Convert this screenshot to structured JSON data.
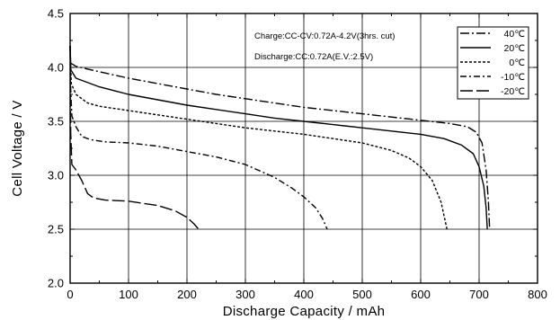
{
  "chart_data": {
    "type": "line",
    "xlabel": "Discharge  Capacity  /  mAh",
    "ylabel": "Cell  Voltage  /  V",
    "xlim": [
      0,
      800
    ],
    "ylim": [
      2.0,
      4.5
    ],
    "x_ticks": [
      0,
      100,
      200,
      300,
      400,
      500,
      600,
      700,
      800
    ],
    "y_ticks": [
      2.0,
      2.5,
      3.0,
      3.5,
      4.0,
      4.5
    ],
    "x_tick_labels": [
      "0",
      "100",
      "200",
      "300",
      "400",
      "500",
      "600",
      "700",
      "800"
    ],
    "y_tick_labels": [
      "2.0",
      "2.5",
      "3.0",
      "3.5",
      "4.0",
      "4.5"
    ],
    "grid": true,
    "legend_position": "top-right",
    "annotations": [
      "Charge:CC-CV:0.72A-4.2V(3hrs.  cut)",
      "Discharge:CC:0.72A(E.V.:2.5V)"
    ],
    "series": [
      {
        "name": "40℃",
        "dash": "10,3,2,3",
        "points": [
          [
            0,
            4.2
          ],
          [
            1,
            4.04
          ],
          [
            10,
            4.01
          ],
          [
            50,
            3.96
          ],
          [
            100,
            3.9
          ],
          [
            150,
            3.85
          ],
          [
            200,
            3.8
          ],
          [
            250,
            3.75
          ],
          [
            300,
            3.71
          ],
          [
            350,
            3.67
          ],
          [
            400,
            3.63
          ],
          [
            450,
            3.6
          ],
          [
            500,
            3.57
          ],
          [
            550,
            3.54
          ],
          [
            600,
            3.51
          ],
          [
            650,
            3.48
          ],
          [
            680,
            3.45
          ],
          [
            695,
            3.4
          ],
          [
            705,
            3.3
          ],
          [
            712,
            3.05
          ],
          [
            716,
            2.75
          ],
          [
            718,
            2.5
          ]
        ]
      },
      {
        "name": "20℃",
        "dash": "",
        "points": [
          [
            0,
            4.2
          ],
          [
            1,
            3.98
          ],
          [
            10,
            3.9
          ],
          [
            50,
            3.82
          ],
          [
            100,
            3.75
          ],
          [
            150,
            3.7
          ],
          [
            200,
            3.65
          ],
          [
            250,
            3.61
          ],
          [
            300,
            3.57
          ],
          [
            350,
            3.53
          ],
          [
            400,
            3.5
          ],
          [
            450,
            3.47
          ],
          [
            500,
            3.44
          ],
          [
            550,
            3.41
          ],
          [
            600,
            3.38
          ],
          [
            640,
            3.34
          ],
          [
            670,
            3.28
          ],
          [
            690,
            3.2
          ],
          [
            700,
            3.08
          ],
          [
            708,
            2.9
          ],
          [
            712,
            2.7
          ],
          [
            714,
            2.5
          ]
        ]
      },
      {
        "name": "0℃",
        "dash": "3,2",
        "points": [
          [
            0,
            4.2
          ],
          [
            2,
            3.85
          ],
          [
            10,
            3.75
          ],
          [
            30,
            3.67
          ],
          [
            50,
            3.64
          ],
          [
            100,
            3.6
          ],
          [
            150,
            3.56
          ],
          [
            200,
            3.52
          ],
          [
            250,
            3.48
          ],
          [
            300,
            3.44
          ],
          [
            350,
            3.41
          ],
          [
            400,
            3.38
          ],
          [
            450,
            3.34
          ],
          [
            500,
            3.3
          ],
          [
            550,
            3.23
          ],
          [
            580,
            3.16
          ],
          [
            600,
            3.08
          ],
          [
            620,
            2.95
          ],
          [
            635,
            2.75
          ],
          [
            645,
            2.5
          ]
        ]
      },
      {
        "name": "-10℃",
        "dash": "7,3,2,3",
        "points": [
          [
            0,
            4.2
          ],
          [
            1,
            3.8
          ],
          [
            3,
            3.55
          ],
          [
            10,
            3.45
          ],
          [
            20,
            3.36
          ],
          [
            35,
            3.33
          ],
          [
            60,
            3.31
          ],
          [
            100,
            3.3
          ],
          [
            150,
            3.27
          ],
          [
            200,
            3.22
          ],
          [
            250,
            3.17
          ],
          [
            300,
            3.1
          ],
          [
            350,
            2.98
          ],
          [
            380,
            2.88
          ],
          [
            400,
            2.8
          ],
          [
            420,
            2.7
          ],
          [
            432,
            2.6
          ],
          [
            440,
            2.5
          ]
        ]
      },
      {
        "name": "-20℃",
        "dash": "14,4",
        "points": [
          [
            0,
            4.2
          ],
          [
            1,
            3.4
          ],
          [
            3,
            3.1
          ],
          [
            10,
            3.05
          ],
          [
            20,
            2.95
          ],
          [
            30,
            2.83
          ],
          [
            40,
            2.79
          ],
          [
            60,
            2.77
          ],
          [
            100,
            2.76
          ],
          [
            150,
            2.72
          ],
          [
            180,
            2.67
          ],
          [
            200,
            2.61
          ],
          [
            212,
            2.55
          ],
          [
            220,
            2.5
          ]
        ]
      }
    ]
  }
}
